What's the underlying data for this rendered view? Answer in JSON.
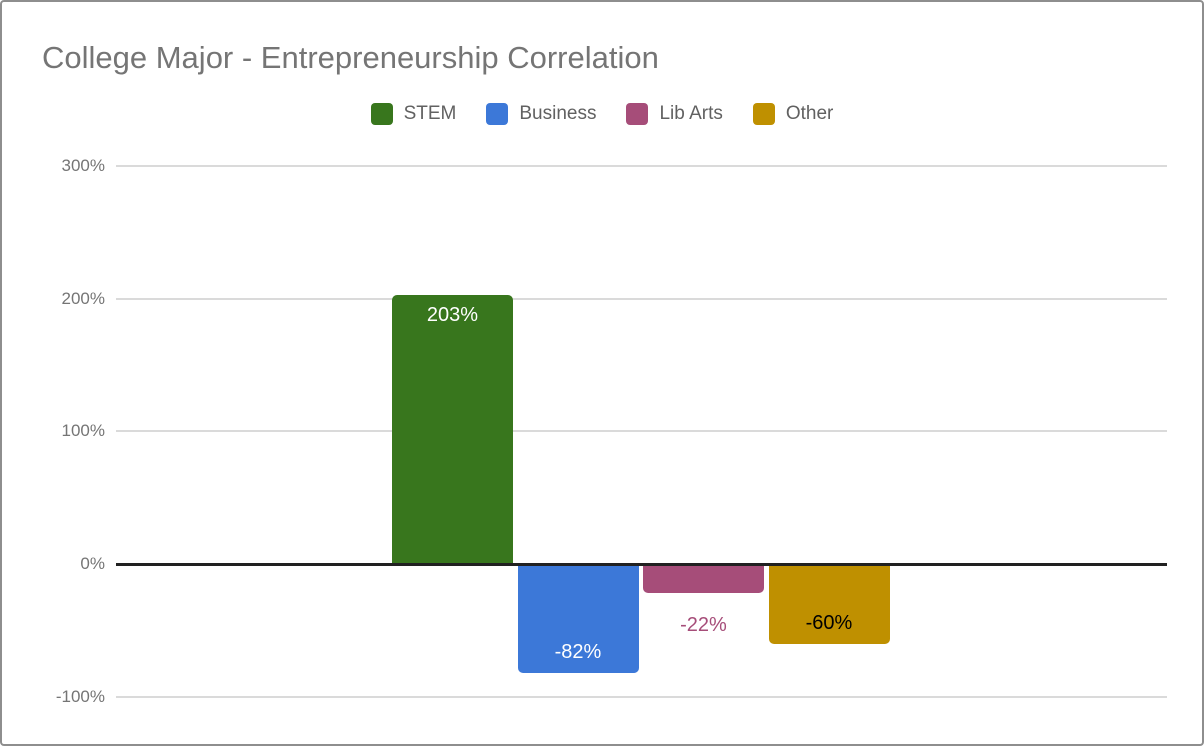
{
  "window": {
    "background": "#ffffff",
    "border_color": "#8e8e8e"
  },
  "chart_data": {
    "type": "bar",
    "title": "College Major - Entrepreneurship Correlation",
    "title_color": "#757575",
    "xlabel": "",
    "ylabel": "",
    "unit": "%",
    "ylim": [
      -100,
      300
    ],
    "grid": true,
    "legend_position": "top",
    "gridline_color": "#dadada",
    "zero_line_color": "#212121",
    "axis_label_color": "#757575",
    "legend_text_color": "#616161",
    "yticks": [
      300,
      200,
      100,
      0,
      -100
    ],
    "ytick_labels": [
      "300%",
      "200%",
      "100%",
      "0%",
      "-100%"
    ],
    "categories": [
      "STEM",
      "Business",
      "Lib Arts",
      "Other"
    ],
    "values": [
      203,
      -82,
      -22,
      -60
    ],
    "series": [
      {
        "name": "STEM",
        "value": 203,
        "color": "#38761D",
        "label": "203%",
        "label_color": "#ffffff",
        "label_placement": "inside-top"
      },
      {
        "name": "Business",
        "value": -82,
        "color": "#3C78D8",
        "label": "-82%",
        "label_color": "#ffffff",
        "label_placement": "inside-bottom"
      },
      {
        "name": "Lib Arts",
        "value": -22,
        "color": "#A64D79",
        "label": "-22%",
        "label_color": "#A64D79",
        "label_placement": "outside-below"
      },
      {
        "name": "Other",
        "value": -60,
        "color": "#BF9000",
        "label": "-60%",
        "label_color": "#000000",
        "label_placement": "inside-bottom"
      }
    ]
  }
}
